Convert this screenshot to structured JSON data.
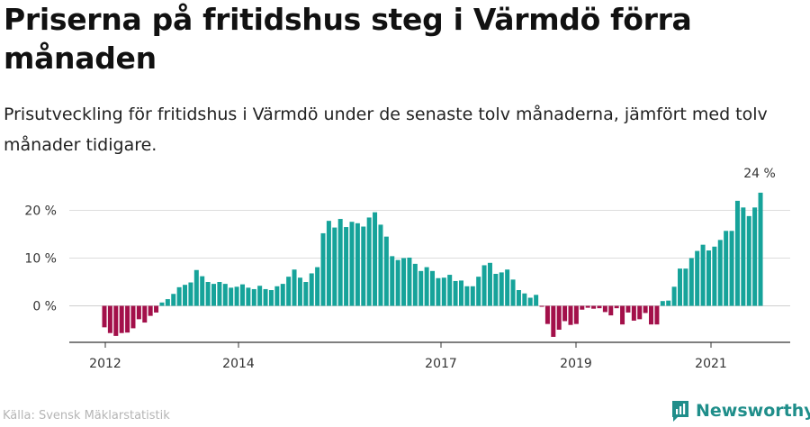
{
  "title": "Priserna på fritidshus steg i Värmdö förra månaden",
  "subtitle": "Prisutveckling för fritidshus i Värmdö under de senaste tolv månaderna, jämfört med tolv månader tidigare.",
  "source": "Källa: Svensk Mäklarstatistik",
  "brand": "Newsworthy",
  "colors": {
    "positive": "#16a39a",
    "negative": "#a3104a",
    "brand": "#1f8e8a",
    "grid": "#dddddd"
  },
  "chart_data": {
    "type": "bar",
    "x_tick_labels": [
      "2012",
      "2014",
      "2017",
      "2019",
      "2021"
    ],
    "y_tick_labels": [
      "0 %",
      "10 %",
      "20 %"
    ],
    "ylim": [
      -7,
      25
    ],
    "annotation": "24 %",
    "values": [
      -4.5,
      -5.7,
      -6.3,
      -5.7,
      -5.6,
      -4.7,
      -2.8,
      -3.5,
      -2.1,
      -1.4,
      0.7,
      1.4,
      2.5,
      3.9,
      4.4,
      4.9,
      7.5,
      6.2,
      5.0,
      4.6,
      5.0,
      4.6,
      3.8,
      4.0,
      4.5,
      3.8,
      3.5,
      4.2,
      3.5,
      3.3,
      4.1,
      4.6,
      6.1,
      7.6,
      5.9,
      5.0,
      6.8,
      8.1,
      15.2,
      17.8,
      16.4,
      18.2,
      16.5,
      17.6,
      17.3,
      16.6,
      18.5,
      19.6,
      17.0,
      14.5,
      10.4,
      9.6,
      10.0,
      10.1,
      8.8,
      7.3,
      8.1,
      7.3,
      5.8,
      5.9,
      6.5,
      5.2,
      5.3,
      4.1,
      4.1,
      6.1,
      8.5,
      9.0,
      6.7,
      7.0,
      7.6,
      5.5,
      3.3,
      2.6,
      1.7,
      2.3,
      -0.2,
      -3.8,
      -6.5,
      -5.0,
      -3.2,
      -4.0,
      -3.8,
      -0.8,
      -0.4,
      -0.6,
      -0.5,
      -1.3,
      -2.0,
      -0.5,
      -3.9,
      -1.4,
      -3.1,
      -2.8,
      -1.5,
      -3.9,
      -3.9,
      1.0,
      1.1,
      4.0,
      7.8,
      7.8,
      10.0,
      11.5,
      12.8,
      11.6,
      12.4,
      13.8,
      15.7,
      15.7,
      22.0,
      20.6,
      18.8,
      20.6,
      23.7
    ]
  }
}
